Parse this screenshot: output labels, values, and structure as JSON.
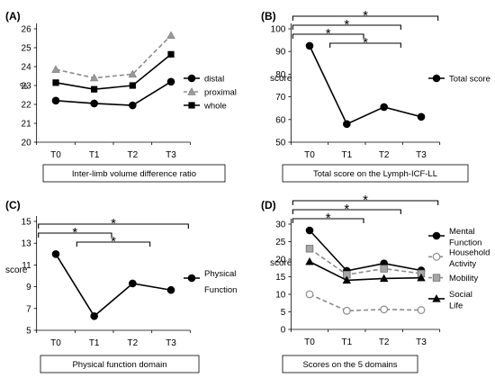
{
  "chart_data": [
    {
      "panel": "(A)",
      "type": "line",
      "caption": "Inter-limb volume difference ratio",
      "ylabel": "%",
      "categories": [
        "T0",
        "T1",
        "T2",
        "T3"
      ],
      "ylim": [
        20,
        26
      ],
      "yticks": [
        20,
        21,
        22,
        23,
        24,
        25,
        26
      ],
      "series": [
        {
          "name": "distal",
          "values": [
            22.2,
            22.05,
            21.95,
            23.2
          ],
          "color": "#000000",
          "marker": "circle",
          "dash": false
        },
        {
          "name": "proximal",
          "values": [
            23.85,
            23.4,
            23.6,
            25.65
          ],
          "color": "#8c8c8c",
          "marker": "triangle",
          "dash": true
        },
        {
          "name": "whole",
          "values": [
            23.15,
            22.8,
            23.0,
            24.65
          ],
          "color": "#000000",
          "marker": "square",
          "dash": false
        }
      ],
      "significance": []
    },
    {
      "panel": "(B)",
      "type": "line",
      "caption": "Total score on the Lymph-ICF-LL",
      "ylabel": "score",
      "categories": [
        "T0",
        "T1",
        "T2",
        "T3"
      ],
      "ylim": [
        50,
        100
      ],
      "yticks": [
        50,
        60,
        70,
        80,
        90,
        100
      ],
      "series": [
        {
          "name": "Total score",
          "values": [
            92.5,
            58,
            65.5,
            61.2
          ],
          "color": "#000000",
          "marker": "circle",
          "dash": false
        }
      ],
      "significance": [
        {
          "from": "T0",
          "to": "T3",
          "label": "*"
        },
        {
          "from": "T0",
          "to": "T2",
          "label": "*"
        },
        {
          "from": "T0",
          "to": "T1",
          "label": "*"
        },
        {
          "from": "T1",
          "to": "T2",
          "label": "*"
        }
      ]
    },
    {
      "panel": "(C)",
      "type": "line",
      "caption": "Physical function domain",
      "ylabel": "score",
      "categories": [
        "T0",
        "T1",
        "T2",
        "T3"
      ],
      "ylim": [
        5,
        15
      ],
      "yticks": [
        5,
        7,
        9,
        11,
        13,
        15
      ],
      "series": [
        {
          "name": "Physical Function",
          "values": [
            12.0,
            6.3,
            9.3,
            8.7
          ],
          "color": "#000000",
          "marker": "circle",
          "dash": false
        }
      ],
      "significance": [
        {
          "from": "T0",
          "to": "T3",
          "label": "*"
        },
        {
          "from": "T0",
          "to": "T1",
          "label": "*"
        },
        {
          "from": "T1",
          "to": "T2",
          "label": "*"
        }
      ]
    },
    {
      "panel": "(D)",
      "type": "line",
      "caption": "Scores on the 5 domains",
      "ylabel": "score",
      "categories": [
        "T0",
        "T1",
        "T2",
        "T3"
      ],
      "ylim": [
        0,
        30
      ],
      "yticks": [
        0,
        5,
        10,
        15,
        20,
        25,
        30
      ],
      "series": [
        {
          "name": "Mental Function",
          "values": [
            28.2,
            16.7,
            18.8,
            16.8
          ],
          "color": "#000000",
          "marker": "circle",
          "dash": false
        },
        {
          "name": "Household Activity",
          "values": [
            10.0,
            5.3,
            5.7,
            5.5
          ],
          "color": "#8c8c8c",
          "marker": "circle-open",
          "dash": true
        },
        {
          "name": "Mobility",
          "values": [
            23.0,
            15.6,
            17.3,
            15.9
          ],
          "color": "#8c8c8c",
          "marker": "square-gray",
          "dash": true
        },
        {
          "name": "Social Life",
          "values": [
            19.3,
            14.0,
            14.5,
            14.7
          ],
          "color": "#000000",
          "marker": "triangle",
          "dash": false
        }
      ],
      "significance": [
        {
          "from": "T0",
          "to": "T3",
          "label": "*"
        },
        {
          "from": "T0",
          "to": "T2",
          "label": "*"
        },
        {
          "from": "T0",
          "to": "T1",
          "label": "*"
        }
      ]
    }
  ]
}
